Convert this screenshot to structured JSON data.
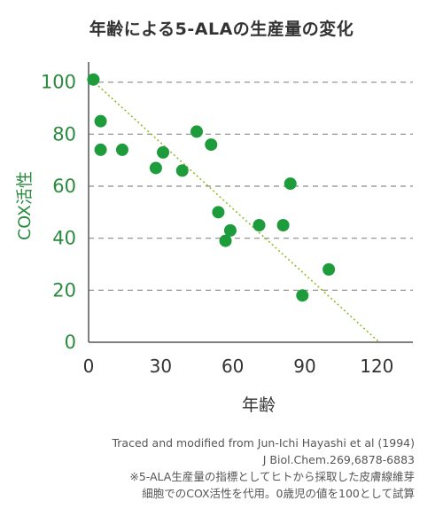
{
  "chart_data": {
    "type": "scatter",
    "title": "年齢による5-ALAの生産量の変化",
    "xlabel": "年齢",
    "ylabel": "COX活性",
    "xlim": [
      0,
      135
    ],
    "ylim": [
      0,
      105
    ],
    "x_ticks": [
      0,
      30,
      60,
      90,
      120
    ],
    "y_ticks": [
      0,
      20,
      40,
      60,
      80,
      100
    ],
    "grid": "horizontal-dashed",
    "point_color": "#1e9c3c",
    "trend_color": "#8cbf26",
    "points": [
      {
        "x": 2,
        "y": 101
      },
      {
        "x": 5,
        "y": 85
      },
      {
        "x": 5,
        "y": 74
      },
      {
        "x": 14,
        "y": 74
      },
      {
        "x": 28,
        "y": 67
      },
      {
        "x": 31,
        "y": 73
      },
      {
        "x": 39,
        "y": 66
      },
      {
        "x": 45,
        "y": 81
      },
      {
        "x": 51,
        "y": 76
      },
      {
        "x": 54,
        "y": 50
      },
      {
        "x": 57,
        "y": 39
      },
      {
        "x": 59,
        "y": 43
      },
      {
        "x": 71,
        "y": 45
      },
      {
        "x": 81,
        "y": 45
      },
      {
        "x": 84,
        "y": 61
      },
      {
        "x": 89,
        "y": 18
      },
      {
        "x": 100,
        "y": 28
      }
    ],
    "trend_line": [
      {
        "x": 0,
        "y": 102
      },
      {
        "x": 121,
        "y": 0
      }
    ]
  },
  "source_note": [
    "Traced and modified from Jun-Ichi Hayashi et al (1994)",
    "J Biol.Chem.269,6878-6883",
    "※5-ALA生産量の指標としてヒトから採取した皮膚線維芽",
    "細胞でのCOX活性を代用。0歳児の値を100として試算"
  ]
}
